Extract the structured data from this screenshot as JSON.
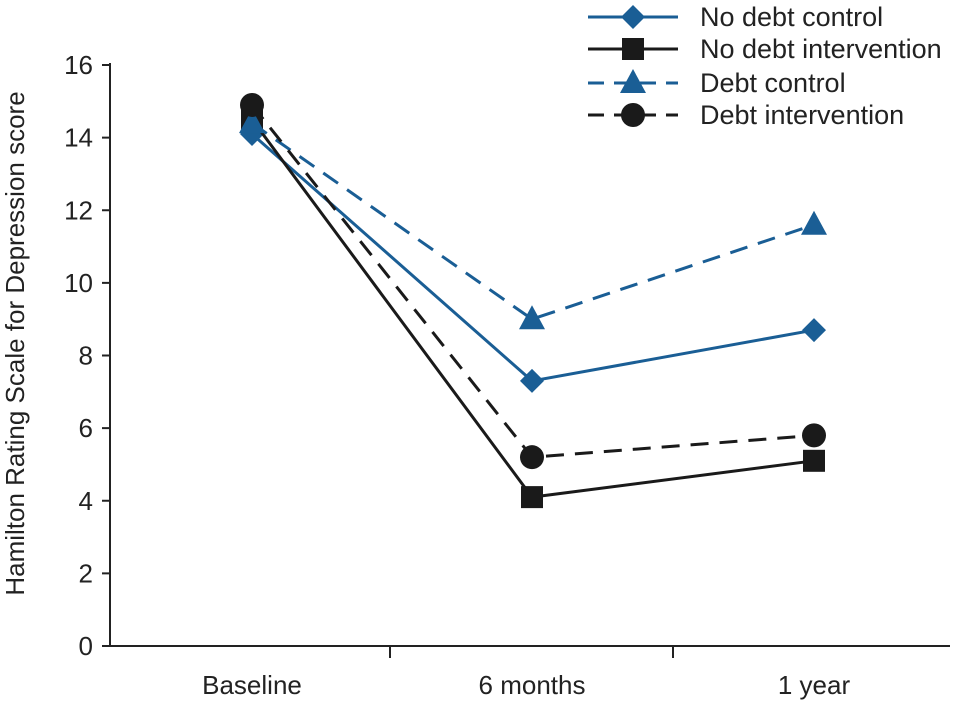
{
  "chart_data": {
    "type": "line",
    "title": "",
    "xlabel": "",
    "ylabel": "Hamilton Rating Scale for Depression score",
    "categories": [
      "Baseline",
      "6 months",
      "1 year"
    ],
    "ylim": [
      0,
      16
    ],
    "yticks": [
      0,
      2,
      4,
      6,
      8,
      10,
      12,
      14,
      16
    ],
    "grid": false,
    "legend": "top-right",
    "series": [
      {
        "name": "No debt control",
        "values": [
          14.1,
          7.3,
          8.7
        ],
        "color": "#1a5e95",
        "dash": "solid",
        "marker": "diamond"
      },
      {
        "name": "No debt intervention",
        "values": [
          14.5,
          4.1,
          5.1
        ],
        "color": "#1a1a1a",
        "dash": "solid",
        "marker": "square"
      },
      {
        "name": "Debt control",
        "values": [
          14.4,
          9.0,
          11.6
        ],
        "color": "#1a5e95",
        "dash": "dashed",
        "marker": "triangle"
      },
      {
        "name": "Debt intervention",
        "values": [
          14.9,
          5.2,
          5.8
        ],
        "color": "#1a1a1a",
        "dash": "dashed",
        "marker": "circle"
      }
    ]
  }
}
